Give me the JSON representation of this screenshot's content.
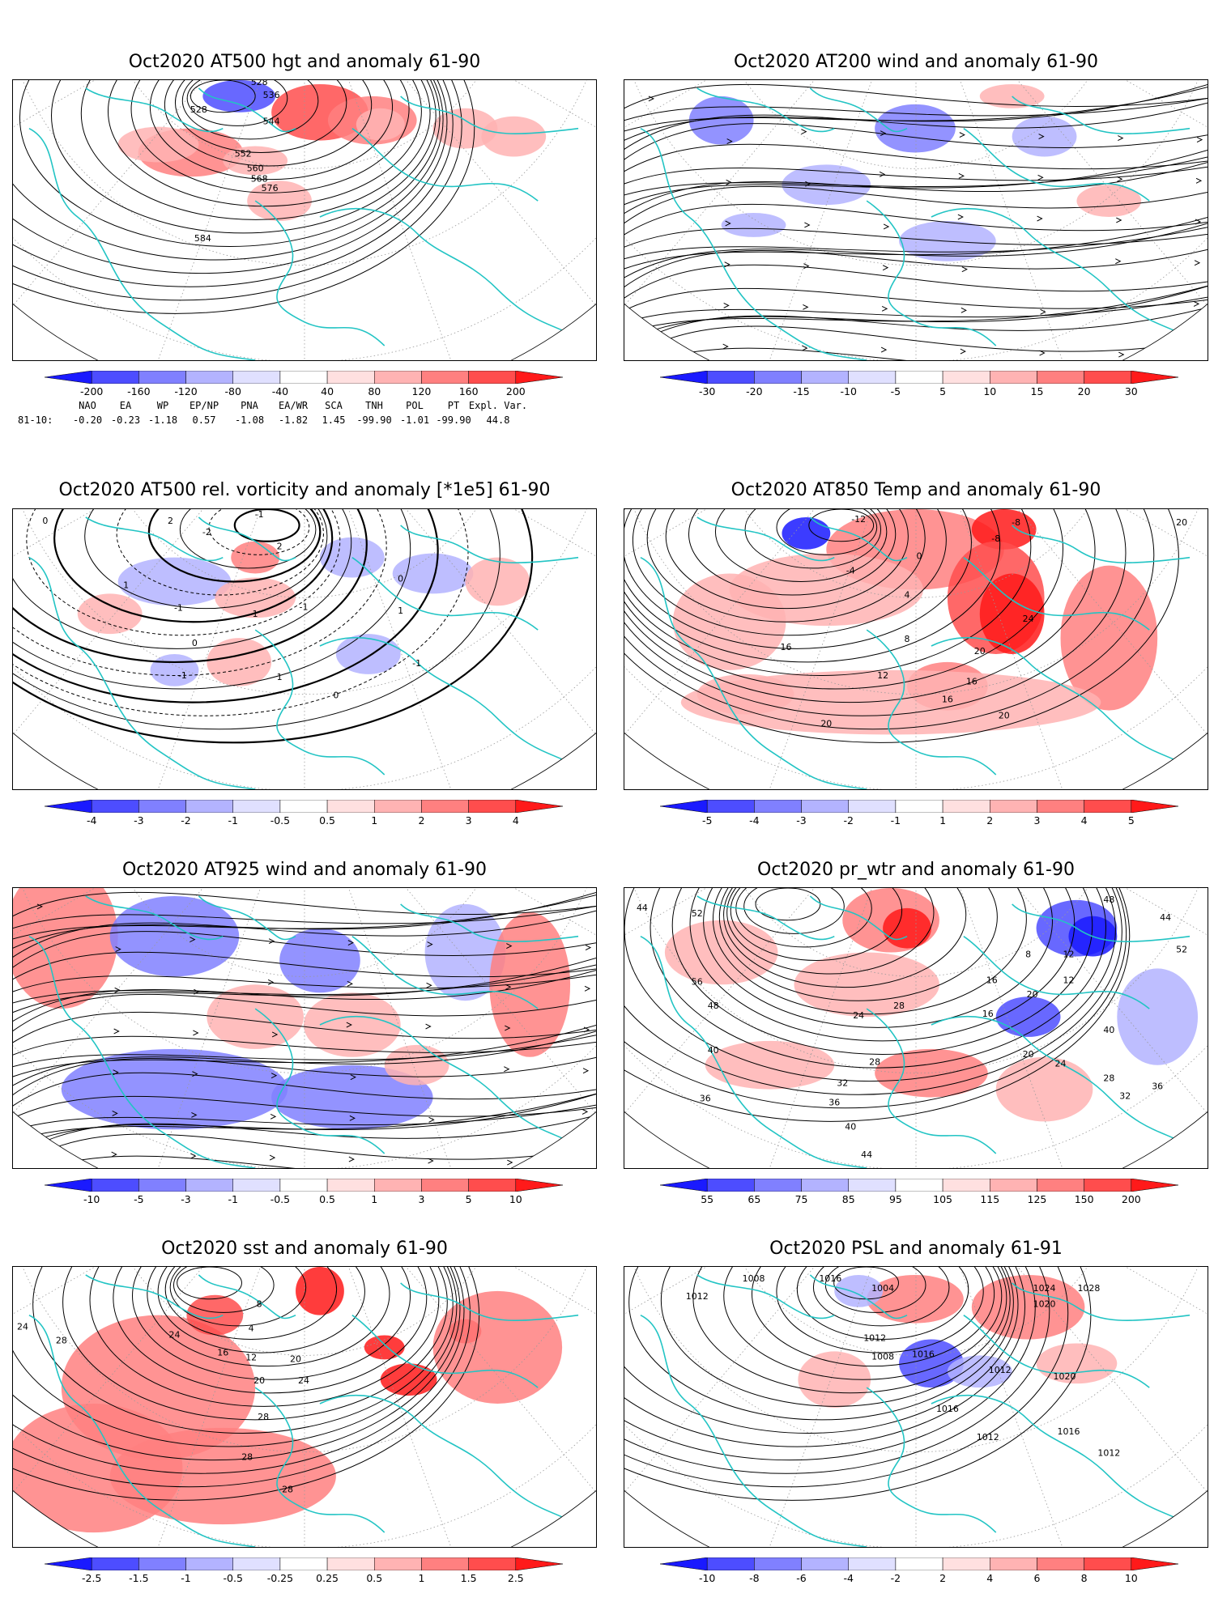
{
  "panels": [
    {
      "id": "p1",
      "title": "Oct2020 AT500 hgt and anomaly 61-90",
      "colorbar": [
        "-200",
        "-160",
        "-120",
        "-80",
        "-40",
        "40",
        "80",
        "120",
        "160",
        "200"
      ],
      "contour_labels": [
        "528",
        "528",
        "536",
        "544",
        "552",
        "560",
        "568",
        "576",
        "584"
      ]
    },
    {
      "id": "p2",
      "title": "Oct2020 AT200 wind and anomaly 61-90",
      "colorbar": [
        "-30",
        "-20",
        "-15",
        "-10",
        "-5",
        "5",
        "10",
        "15",
        "20",
        "30"
      ],
      "contour_labels": []
    },
    {
      "id": "p3",
      "title": "Oct2020 AT500 rel. vorticity and anomaly [*1e5] 61-90",
      "colorbar": [
        "-4",
        "-3",
        "-2",
        "-1",
        "-0.5",
        "0.5",
        "1",
        "2",
        "3",
        "4"
      ],
      "contour_labels": [
        "0",
        "-1",
        "2",
        "-2",
        "1",
        "-1",
        "1",
        "0",
        "-1",
        "1",
        "0",
        "-1",
        "0",
        "2",
        "-1",
        "1"
      ]
    },
    {
      "id": "p4",
      "title": "Oct2020 AT850 Temp and anomaly 61-90",
      "colorbar": [
        "-5",
        "-4",
        "-3",
        "-2",
        "-1",
        "1",
        "2",
        "3",
        "4",
        "5"
      ],
      "contour_labels": [
        "-8",
        "-12",
        "-4",
        "-8",
        "0",
        "4",
        "8",
        "12",
        "16",
        "16",
        "20",
        "20",
        "20",
        "24",
        "16",
        "20"
      ]
    },
    {
      "id": "p5",
      "title": "Oct2020 AT925 wind and anomaly 61-90",
      "colorbar": [
        "-10",
        "-5",
        "-3",
        "-1",
        "-0.5",
        "0.5",
        "1",
        "3",
        "5",
        "10"
      ],
      "contour_labels": []
    },
    {
      "id": "p6",
      "title": "Oct2020 pr_wtr and anomaly 61-90",
      "colorbar": [
        "55",
        "65",
        "75",
        "85",
        "95",
        "105",
        "115",
        "125",
        "150",
        "200"
      ],
      "contour_labels": [
        "44",
        "52",
        "56",
        "48",
        "40",
        "36",
        "28",
        "24",
        "28",
        "32",
        "36",
        "40",
        "44",
        "8",
        "12",
        "16",
        "20",
        "24",
        "28",
        "32",
        "36",
        "40",
        "44",
        "48",
        "52",
        "12",
        "16",
        "20"
      ]
    },
    {
      "id": "p7",
      "title": "Oct2020 sst and anomaly 61-90",
      "colorbar": [
        "-2.5",
        "-1.5",
        "-1",
        "-0.5",
        "-0.25",
        "0.25",
        "0.5",
        "1",
        "1.5",
        "2.5"
      ],
      "contour_labels": [
        "24",
        "28",
        "24",
        "16",
        "12",
        "8",
        "4",
        "20",
        "20",
        "24",
        "28",
        "28",
        "28"
      ]
    },
    {
      "id": "p8",
      "title": "Oct2020 PSL and anomaly 61-91",
      "colorbar": [
        "-10",
        "-8",
        "-6",
        "-4",
        "-2",
        "2",
        "4",
        "6",
        "8",
        "10"
      ],
      "contour_labels": [
        "1008",
        "1012",
        "1016",
        "1020",
        "1024",
        "1028",
        "1004",
        "1008",
        "1012",
        "1016",
        "1020",
        "1012",
        "1016",
        "1012",
        "1016",
        "1012"
      ]
    }
  ],
  "teleconnections": {
    "headers": [
      "NAO",
      "EA",
      "WP",
      "EP/NP",
      "PNA",
      "EA/WR",
      "SCA",
      "TNH",
      "POL",
      "PT",
      "Expl. Var."
    ],
    "row_label": "81-10:",
    "values": [
      "-0.20",
      "-0.23",
      "-1.18",
      "0.57",
      "-1.08",
      "-1.82",
      "1.45",
      "-99.90",
      "-1.01",
      "-99.90",
      "44.8"
    ]
  },
  "colors": {
    "coast": "#22c4c4",
    "contour": "#000000",
    "neg": [
      "#1a1aff",
      "#4d4dff",
      "#8080ff",
      "#b3b3ff",
      "#e0e0ff"
    ],
    "pos": [
      "#ffe0e0",
      "#ffb3b3",
      "#ff8080",
      "#ff4d4d",
      "#ff1a1a"
    ]
  }
}
